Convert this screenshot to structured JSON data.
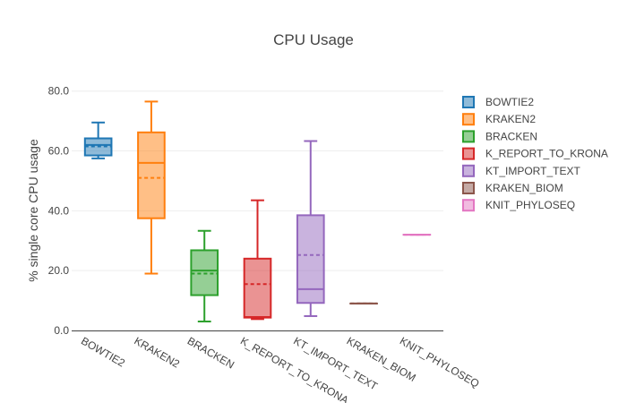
{
  "chart_data": {
    "type": "box",
    "title": "CPU Usage",
    "xlabel": "",
    "ylabel": "% single core CPU usage",
    "ylim": [
      0,
      85
    ],
    "yticks": [
      0,
      20,
      40,
      60,
      80
    ],
    "ytick_labels": [
      "0.0",
      "20.0",
      "40.0",
      "60.0",
      "80.0"
    ],
    "grid": true,
    "legend_position": "right",
    "categories": [
      "BOWTIE2",
      "KRAKEN2",
      "BRACKEN",
      "K_REPORT_TO_KRONA",
      "KT_IMPORT_TEXT",
      "KRAKEN_BIOM",
      "KNIT_PHYLOSEQ"
    ],
    "series": [
      {
        "name": "BOWTIE2",
        "color": "#1f77b4",
        "min": 57.5,
        "q1": 58.5,
        "median": 62.0,
        "mean": 61.5,
        "q3": 64.2,
        "max": 69.5
      },
      {
        "name": "KRAKEN2",
        "color": "#ff7f0e",
        "min": 19.0,
        "q1": 37.5,
        "median": 56.0,
        "mean": 51.0,
        "q3": 66.2,
        "max": 76.5
      },
      {
        "name": "BRACKEN",
        "color": "#2ca02c",
        "min": 3.0,
        "q1": 11.8,
        "median": 20.0,
        "mean": 19.0,
        "q3": 26.8,
        "max": 33.3
      },
      {
        "name": "K_REPORT_TO_KRONA",
        "color": "#d62728",
        "min": 3.8,
        "q1": 4.3,
        "median": 4.5,
        "mean": 15.5,
        "q3": 24.0,
        "max": 43.5
      },
      {
        "name": "KT_IMPORT_TEXT",
        "color": "#9467bd",
        "min": 4.8,
        "q1": 9.2,
        "median": 13.8,
        "mean": 25.2,
        "q3": 38.5,
        "max": 63.3
      },
      {
        "name": "KRAKEN_BIOM",
        "color": "#8c564b",
        "min": 9.0,
        "q1": 9.0,
        "median": 9.0,
        "mean": 9.0,
        "q3": 9.0,
        "max": 9.0
      },
      {
        "name": "KNIT_PHYLOSEQ",
        "color": "#e377c2",
        "min": 32.0,
        "q1": 32.0,
        "median": 32.0,
        "mean": 32.0,
        "q3": 32.0,
        "max": 32.0
      }
    ]
  }
}
